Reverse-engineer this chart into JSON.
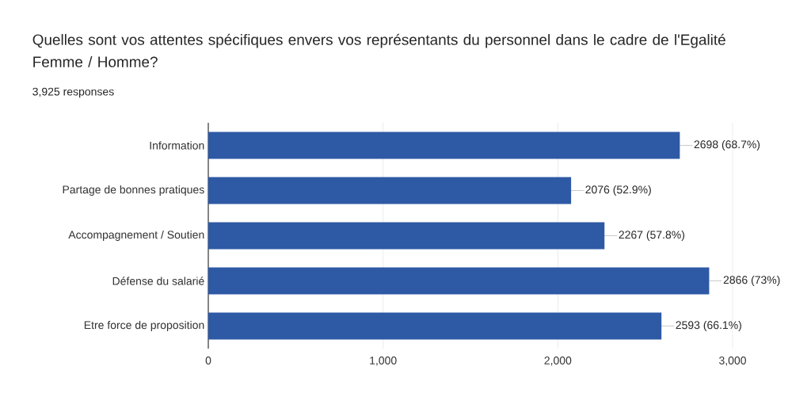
{
  "chart_data": {
    "type": "bar",
    "orientation": "horizontal",
    "title": "Quelles sont vos attentes spécifiques envers vos représentants du personnel dans le cadre de l'Egalité Femme / Homme?",
    "subtitle": "3,925 responses",
    "categories": [
      "Information",
      "Partage de bonnes pratiques",
      "Accompagnement / Soutien",
      "Défense du salarié",
      "Etre force de proposition"
    ],
    "values": [
      2698,
      2076,
      2267,
      2866,
      2593
    ],
    "value_labels": [
      "2698 (68.7%)",
      "2076 (52.9%)",
      "2267 (57.8%)",
      "2866 (73%)",
      "2593 (66.1%)"
    ],
    "color": "#2e59a5",
    "xlim": [
      0,
      3000
    ],
    "xticks": [
      0,
      {
        "value": 1000,
        "label": "1,000"
      },
      {
        "value": 2000,
        "label": "2,000"
      },
      {
        "value": 3000,
        "label": "3,000"
      }
    ],
    "grid": "x"
  }
}
